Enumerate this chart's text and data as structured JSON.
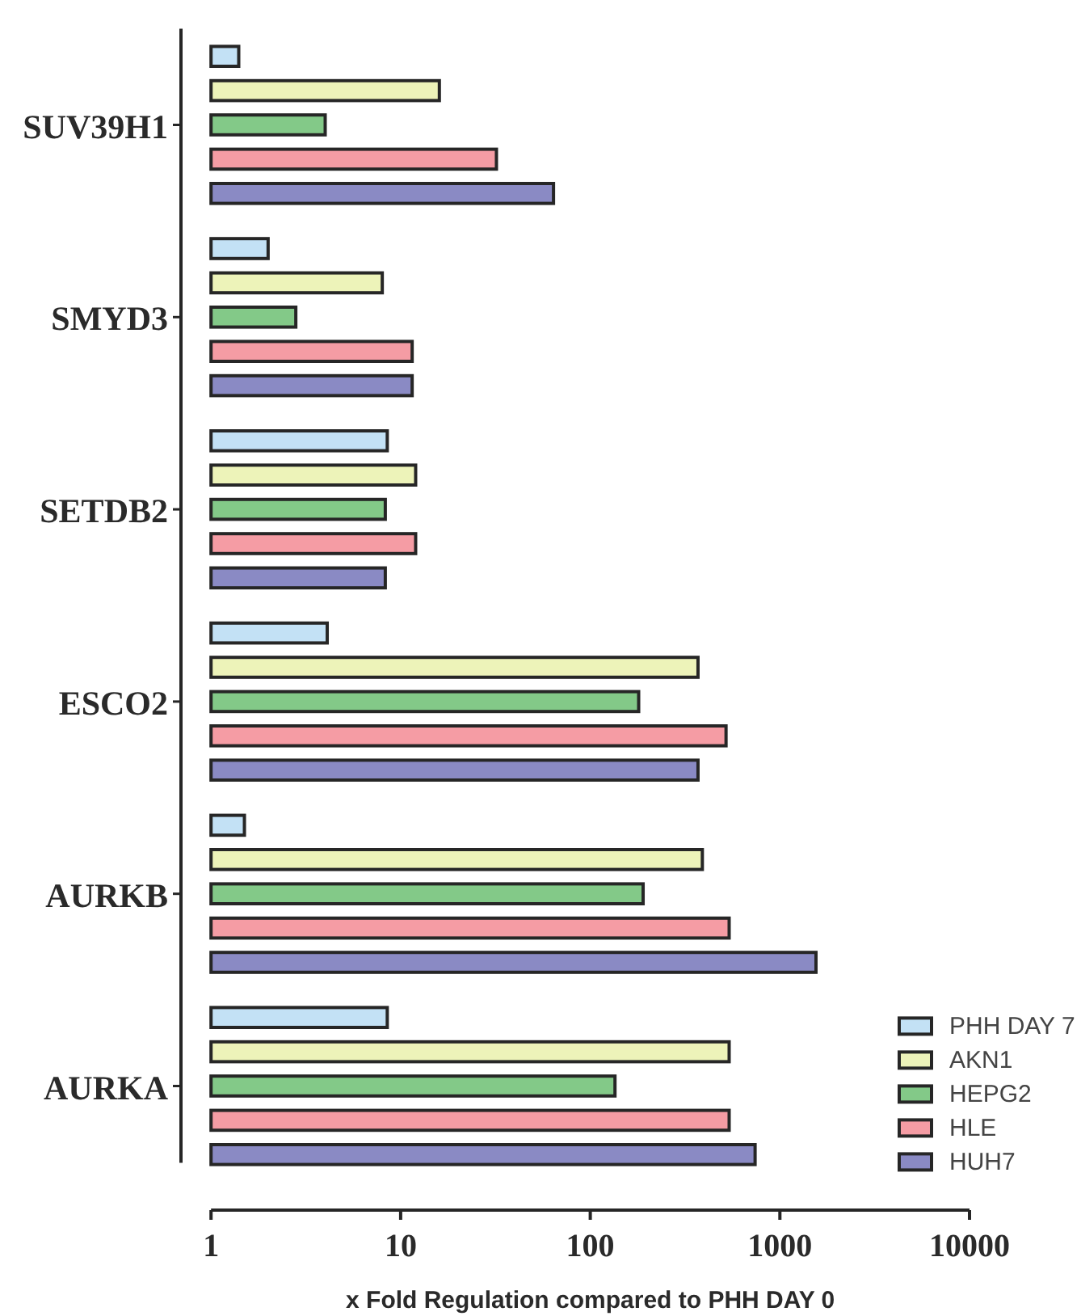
{
  "chart_data": {
    "type": "bar",
    "orientation": "horizontal",
    "xlabel": "x Fold Regulation compared to PHH DAY 0",
    "categories": [
      "SUV39H1",
      "SMYD3",
      "SETDB2",
      "ESCO2",
      "AURKB",
      "AURKA"
    ],
    "series": [
      {
        "name": "PHH DAY 7",
        "color": "#c3e1f5",
        "values": [
          1.4,
          2,
          8.5,
          4.1,
          1.5,
          8.5
        ]
      },
      {
        "name": "AKN1",
        "color": "#edf3b9",
        "values": [
          16,
          8,
          12,
          370,
          390,
          540
        ]
      },
      {
        "name": "HEPG2",
        "color": "#83c988",
        "values": [
          4,
          2.8,
          8.3,
          180,
          190,
          135
        ]
      },
      {
        "name": "HLE",
        "color": "#f59ca4",
        "values": [
          32,
          11.5,
          12,
          520,
          540,
          540
        ]
      },
      {
        "name": "HUH7",
        "color": "#8a8ac4",
        "values": [
          64,
          11.5,
          8.3,
          370,
          1550,
          740
        ]
      }
    ],
    "xlim": [
      1,
      10000
    ],
    "xticks": [
      1,
      10,
      100,
      1000,
      10000
    ],
    "log": "x",
    "legend": "bottom right"
  }
}
